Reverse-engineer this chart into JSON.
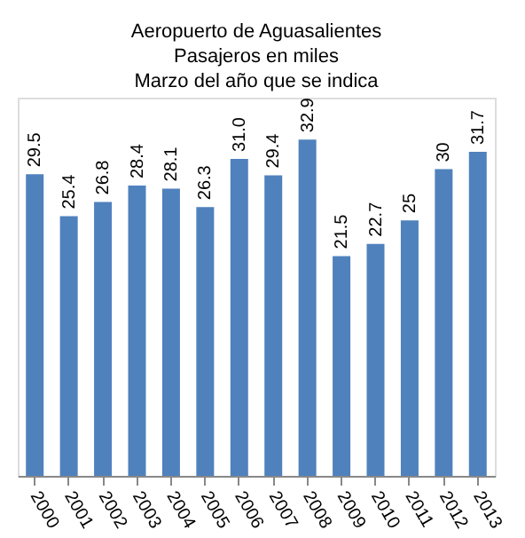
{
  "chart_data": {
    "type": "bar",
    "title": [
      "Aeropuerto de Aguasalientes",
      "Pasajeros en miles",
      "Marzo del año que se indica"
    ],
    "categories": [
      "2000",
      "2001",
      "2002",
      "2003",
      "2004",
      "2005",
      "2006",
      "2007",
      "2008",
      "2009",
      "2010",
      "2011",
      "2012",
      "2013"
    ],
    "values": [
      29.5,
      25.4,
      26.8,
      28.4,
      28.1,
      26.3,
      31.0,
      29.4,
      32.9,
      21.5,
      22.7,
      25,
      30,
      31.7
    ],
    "value_labels": [
      "29.5",
      "25.4",
      "26.8",
      "28.4",
      "28.1",
      "26.3",
      "31.0",
      "29.4",
      "32.9",
      "21.5",
      "22.7",
      "25",
      "30",
      "31.7"
    ],
    "color": "#4f81bd",
    "ylim": [
      0,
      37
    ]
  }
}
